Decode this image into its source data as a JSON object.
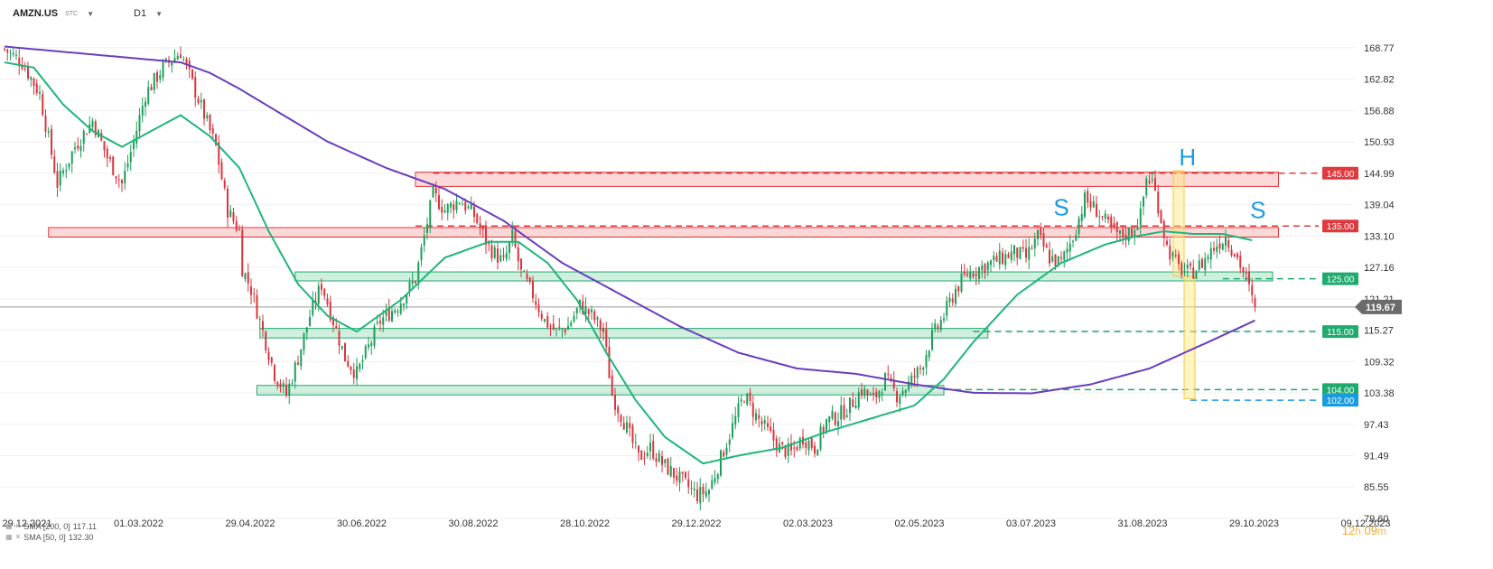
{
  "header": {
    "symbol": "AMZN.US",
    "market": "STC",
    "timeframe": "D1"
  },
  "legend": [
    {
      "label": "SMA [200, 0]",
      "value": "117.11",
      "color": "#6a3dbd"
    },
    {
      "label": "SMA [50, 0]",
      "value": "132.30",
      "color": "#1fb57a"
    }
  ],
  "timer": {
    "hours": "12",
    "h_unit": "h",
    "minutes": "09",
    "m_unit": "m"
  },
  "chart_data": {
    "type": "candlestick",
    "ylim": [
      79.6,
      172.0
    ],
    "y_ticks": [
      "168.77",
      "162.82",
      "156.88",
      "150.93",
      "144.99",
      "139.04",
      "133.10",
      "127.16",
      "121.21",
      "115.27",
      "109.32",
      "103.38",
      "97.43",
      "91.49",
      "85.55",
      "79.60"
    ],
    "x_ticks": [
      "29.12.2021",
      "01.03.2022",
      "29.04.2022",
      "30.06.2022",
      "30.08.2022",
      "28.10.2022",
      "29.12.2022",
      "02.03.2023",
      "02.05.2023",
      "03.07.2023",
      "31.08.2023",
      "29.10.2023",
      "09.12.2023"
    ],
    "current_price": {
      "value": 119.67,
      "label": "119.67",
      "color": "#6b6b6b"
    },
    "price_path": [
      [
        0,
        168.5
      ],
      [
        6,
        166
      ],
      [
        12,
        160
      ],
      [
        18,
        143
      ],
      [
        24,
        150
      ],
      [
        30,
        155
      ],
      [
        35,
        148
      ],
      [
        40,
        143
      ],
      [
        44,
        151
      ],
      [
        48,
        160
      ],
      [
        54,
        165
      ],
      [
        60,
        168
      ],
      [
        64,
        162
      ],
      [
        68,
        156
      ],
      [
        72,
        150
      ],
      [
        76,
        138
      ],
      [
        80,
        134
      ],
      [
        81,
        127
      ],
      [
        84,
        123
      ],
      [
        88,
        115
      ],
      [
        92,
        107
      ],
      [
        96,
        103
      ],
      [
        100,
        110
      ],
      [
        104,
        118
      ],
      [
        108,
        124
      ],
      [
        112,
        117
      ],
      [
        116,
        110
      ],
      [
        120,
        107
      ],
      [
        124,
        112
      ],
      [
        128,
        117
      ],
      [
        134,
        120
      ],
      [
        140,
        125
      ],
      [
        146,
        141
      ],
      [
        150,
        138
      ],
      [
        155,
        140
      ],
      [
        160,
        137
      ],
      [
        165,
        131
      ],
      [
        170,
        128
      ],
      [
        173,
        133
      ],
      [
        176,
        126
      ],
      [
        180,
        122
      ],
      [
        184,
        117
      ],
      [
        188,
        115
      ],
      [
        192,
        116
      ],
      [
        196,
        120
      ],
      [
        200,
        118
      ],
      [
        204,
        115
      ],
      [
        207,
        103
      ],
      [
        211,
        98
      ],
      [
        216,
        91
      ],
      [
        220,
        93
      ],
      [
        224,
        90
      ],
      [
        228,
        88
      ],
      [
        232,
        86
      ],
      [
        236,
        84
      ],
      [
        240,
        85
      ],
      [
        244,
        91
      ],
      [
        248,
        97
      ],
      [
        252,
        103
      ],
      [
        256,
        99
      ],
      [
        260,
        96
      ],
      [
        264,
        93
      ],
      [
        268,
        92
      ],
      [
        272,
        95
      ],
      [
        276,
        93
      ],
      [
        280,
        98
      ],
      [
        284,
        99
      ],
      [
        288,
        101
      ],
      [
        292,
        104
      ],
      [
        296,
        102
      ],
      [
        300,
        106
      ],
      [
        304,
        103
      ],
      [
        308,
        105
      ],
      [
        312,
        108
      ],
      [
        316,
        114
      ],
      [
        320,
        118
      ],
      [
        324,
        123
      ],
      [
        328,
        126
      ],
      [
        332,
        127
      ],
      [
        336,
        128
      ],
      [
        340,
        129
      ],
      [
        344,
        130
      ],
      [
        348,
        129
      ],
      [
        352,
        133
      ],
      [
        356,
        129
      ],
      [
        360,
        128
      ],
      [
        364,
        133
      ],
      [
        368,
        140
      ],
      [
        372,
        138
      ],
      [
        376,
        135
      ],
      [
        380,
        133
      ],
      [
        384,
        134
      ],
      [
        387,
        137
      ],
      [
        389,
        144
      ],
      [
        391,
        143.5
      ],
      [
        393,
        139
      ],
      [
        396,
        131
      ],
      [
        400,
        127
      ],
      [
        404,
        126
      ],
      [
        408,
        128
      ],
      [
        412,
        131
      ],
      [
        416,
        133
      ],
      [
        420,
        129
      ],
      [
        423,
        125
      ],
      [
        425,
        121
      ],
      [
        426,
        119.67
      ]
    ],
    "sma200_path": [
      [
        0,
        169
      ],
      [
        20,
        168
      ],
      [
        40,
        167
      ],
      [
        60,
        166
      ],
      [
        70,
        164
      ],
      [
        80,
        161
      ],
      [
        95,
        156
      ],
      [
        110,
        151
      ],
      [
        130,
        146
      ],
      [
        150,
        142
      ],
      [
        170,
        136
      ],
      [
        190,
        128
      ],
      [
        210,
        122
      ],
      [
        230,
        116
      ],
      [
        250,
        111
      ],
      [
        270,
        108
      ],
      [
        290,
        107
      ],
      [
        310,
        105
      ],
      [
        330,
        103.4
      ],
      [
        350,
        103.3
      ],
      [
        370,
        105
      ],
      [
        390,
        108
      ],
      [
        410,
        113
      ],
      [
        426,
        117.11
      ]
    ],
    "sma50_path": [
      [
        0,
        166
      ],
      [
        10,
        165
      ],
      [
        20,
        158
      ],
      [
        30,
        153
      ],
      [
        40,
        150
      ],
      [
        50,
        153
      ],
      [
        60,
        156
      ],
      [
        70,
        152
      ],
      [
        80,
        146
      ],
      [
        90,
        134
      ],
      [
        100,
        124
      ],
      [
        110,
        118
      ],
      [
        120,
        115
      ],
      [
        135,
        121
      ],
      [
        150,
        129
      ],
      [
        165,
        132
      ],
      [
        175,
        132
      ],
      [
        185,
        128
      ],
      [
        195,
        121
      ],
      [
        205,
        111
      ],
      [
        215,
        102
      ],
      [
        225,
        95
      ],
      [
        238,
        90
      ],
      [
        250,
        91.5
      ],
      [
        265,
        93
      ],
      [
        280,
        96
      ],
      [
        295,
        98.5
      ],
      [
        310,
        101
      ],
      [
        320,
        106
      ],
      [
        330,
        113
      ],
      [
        345,
        122
      ],
      [
        360,
        128
      ],
      [
        375,
        131.5
      ],
      [
        385,
        133
      ],
      [
        395,
        134
      ],
      [
        405,
        133.5
      ],
      [
        415,
        133.5
      ],
      [
        425,
        132.3
      ]
    ],
    "zones": [
      {
        "y_from": 142.5,
        "y_to": 145.2,
        "x_from": 140,
        "x_to": 434,
        "color": "red"
      },
      {
        "y_from": 132.9,
        "y_to": 134.7,
        "x_from": 15,
        "x_to": 434,
        "color": "red"
      },
      {
        "y_from": 124.6,
        "y_to": 126.3,
        "x_from": 99,
        "x_to": 432,
        "color": "green"
      },
      {
        "y_from": 113.8,
        "y_to": 115.6,
        "x_from": 87,
        "x_to": 335,
        "color": "green"
      },
      {
        "y_from": 103.0,
        "y_to": 104.8,
        "x_from": 86,
        "x_to": 320,
        "color": "green"
      }
    ],
    "levels": [
      {
        "value": 145.0,
        "label": "145.00",
        "color": "#e0393e",
        "x_from": 146
      },
      {
        "value": 135.0,
        "label": "135.00",
        "color": "#e0393e",
        "x_from": 140
      },
      {
        "value": 125.0,
        "label": "125.00",
        "color": "#1faa6e",
        "x_from": 415
      },
      {
        "value": 115.0,
        "label": "115.00",
        "color": "#1faa6e",
        "x_from": 330
      },
      {
        "value": 104.0,
        "label": "104.00",
        "color": "#1faa6e",
        "x_from": 320
      },
      {
        "value": 102.0,
        "label": "102.00",
        "color": "#1a9be0",
        "x_from": 404
      }
    ],
    "annotations": [
      {
        "text": "S",
        "x": 360,
        "y": 137.0
      },
      {
        "text": "H",
        "x": 403,
        "y": 146.5
      },
      {
        "text": "S",
        "x": 427,
        "y": 136.5
      }
    ],
    "measure": {
      "x": 400,
      "y_top": 145.5,
      "y_mid": 125.5,
      "y_bottom": 102.3
    }
  }
}
